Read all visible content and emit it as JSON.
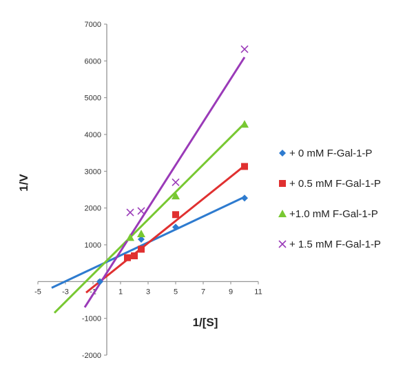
{
  "chart_data": {
    "type": "scatter",
    "title": "",
    "xlabel": "1/[S]",
    "ylabel": "1/V",
    "xlim": [
      -5,
      11
    ],
    "ylim": [
      -2000,
      7000
    ],
    "x_ticks": [
      -5,
      -3,
      -1,
      1,
      3,
      5,
      7,
      9,
      11
    ],
    "y_ticks": [
      -2000,
      -1000,
      0,
      1000,
      2000,
      3000,
      4000,
      5000,
      6000,
      7000
    ],
    "grid": false,
    "legend_position": "right",
    "series": [
      {
        "name": "+ 0 mM F-Gal-1-P",
        "color": "#2e7bcf",
        "marker": "diamond",
        "points": [
          [
            -0.5,
            0
          ],
          [
            2.5,
            1150
          ],
          [
            5,
            1480
          ],
          [
            10,
            2270
          ]
        ],
        "fit_line": [
          [
            -4,
            -170
          ],
          [
            10,
            2300
          ]
        ]
      },
      {
        "name": "+ 0.5 mM F-Gal-1-P",
        "color": "#e03030",
        "marker": "square",
        "points": [
          [
            1.5,
            650
          ],
          [
            2,
            700
          ],
          [
            2.5,
            880
          ],
          [
            5,
            1820
          ],
          [
            10,
            3130
          ]
        ],
        "fit_line": [
          [
            -1.5,
            -300
          ],
          [
            10,
            3150
          ]
        ]
      },
      {
        "name": "+1.0 mM F-Gal-1-P",
        "color": "#78c832",
        "marker": "triangle",
        "points": [
          [
            1.7,
            1200
          ],
          [
            2.5,
            1300
          ],
          [
            5,
            2330
          ],
          [
            10,
            4280
          ]
        ],
        "fit_line": [
          [
            -3.8,
            -850
          ],
          [
            10,
            4300
          ]
        ]
      },
      {
        "name": "+ 1.5 mM F-Gal-1-P",
        "color": "#9a3ab8",
        "marker": "x",
        "points": [
          [
            1.7,
            1880
          ],
          [
            2.5,
            1920
          ],
          [
            5,
            2700
          ],
          [
            10,
            6320
          ]
        ],
        "fit_line": [
          [
            -1.6,
            -700
          ],
          [
            10,
            6100
          ]
        ]
      }
    ]
  }
}
